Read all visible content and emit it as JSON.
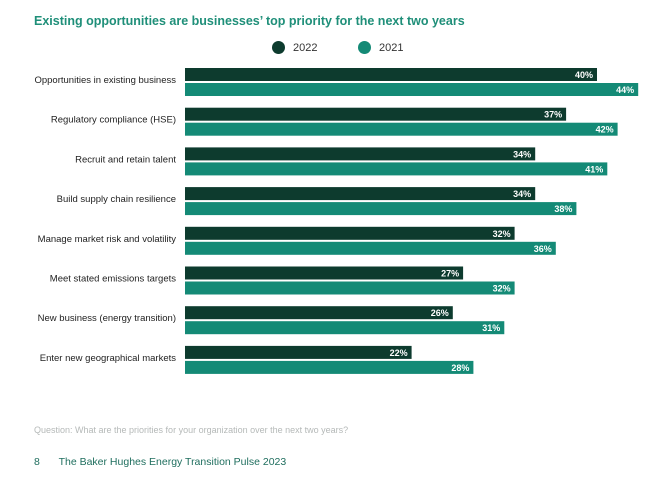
{
  "title": "Existing opportunities are businesses’ top priority for the next two years",
  "colors": {
    "series_2022": "#0d3b2e",
    "series_2021": "#148a76",
    "title": "#1f8f79"
  },
  "chart_data": {
    "type": "bar",
    "orientation": "horizontal",
    "categories": [
      "Opportunities in existing business",
      "Regulatory compliance (HSE)",
      "Recruit and retain talent",
      "Build supply chain resilience",
      "Manage market risk and volatility",
      "Meet stated emissions targets",
      "New business (energy transition)",
      "Enter new geographical markets"
    ],
    "series": [
      {
        "name": "2022",
        "values": [
          40,
          37,
          34,
          34,
          32,
          27,
          26,
          22
        ]
      },
      {
        "name": "2021",
        "values": [
          44,
          42,
          41,
          38,
          36,
          32,
          31,
          28
        ]
      }
    ],
    "value_suffix": "%",
    "legend": "top",
    "grid": false
  },
  "question": "Question: What are the priorities for your organization over the next two years?",
  "footer": {
    "page_number": "8",
    "publication": "The Baker Hughes Energy Transition Pulse 2023"
  }
}
